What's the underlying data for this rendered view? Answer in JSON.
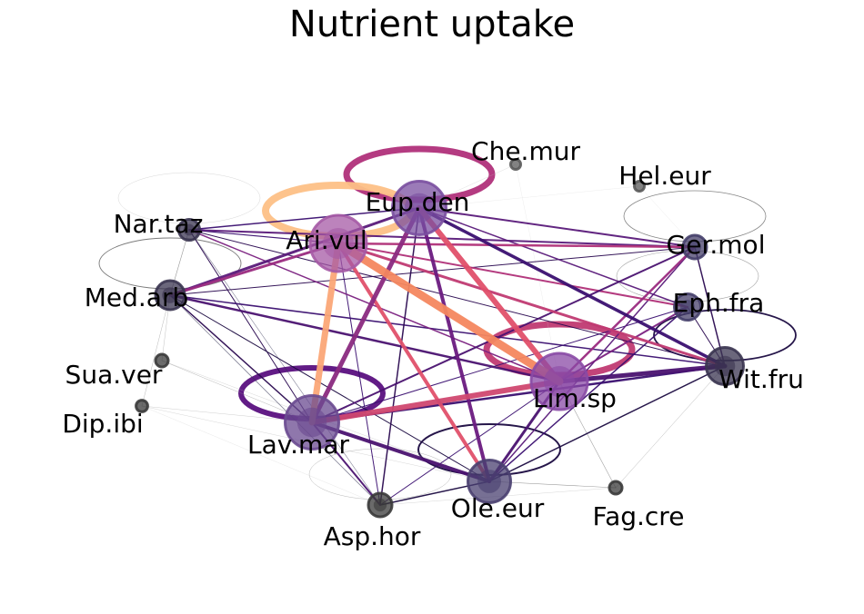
{
  "title": "Nutrient uptake",
  "colors": {
    "background": "#ffffff",
    "label": "#000000"
  },
  "nodes": [
    {
      "id": "Che.mur",
      "label": "Che.mur",
      "weight": 0.05,
      "color": "#5a5a5a"
    },
    {
      "id": "Hel.eur",
      "label": "Hel.eur",
      "weight": 0.05,
      "color": "#5a5a5a"
    },
    {
      "id": "Eup.den",
      "label": "Eup.den",
      "weight": 0.85,
      "color": "#7a4fa0"
    },
    {
      "id": "Ari.vul",
      "label": "Ari.vul",
      "weight": 0.9,
      "color": "#a55aa5"
    },
    {
      "id": "Nar.taz",
      "label": "Nar.taz",
      "weight": 0.25,
      "color": "#3a3450"
    },
    {
      "id": "Ger.mol",
      "label": "Ger.mol",
      "weight": 0.3,
      "color": "#453f6a"
    },
    {
      "id": "Med.arb",
      "label": "Med.arb",
      "weight": 0.4,
      "color": "#3a3450"
    },
    {
      "id": "Eph.fra",
      "label": "Eph.fra",
      "weight": 0.35,
      "color": "#453f6a"
    },
    {
      "id": "Sua.ver",
      "label": "Sua.ver",
      "weight": 0.1,
      "color": "#3a3a3a"
    },
    {
      "id": "Wit.fru",
      "label": "Wit.fru",
      "weight": 0.55,
      "color": "#3a3450"
    },
    {
      "id": "Lim.sp",
      "label": "Lim.sp",
      "weight": 0.9,
      "color": "#8a4aa5"
    },
    {
      "id": "Dip.ibi",
      "label": "Dip.ibi",
      "weight": 0.08,
      "color": "#3a3a3a"
    },
    {
      "id": "Lav.mar",
      "label": "Lav.mar",
      "weight": 0.85,
      "color": "#6a4a90"
    },
    {
      "id": "Ole.eur",
      "label": "Ole.eur",
      "weight": 0.65,
      "color": "#4a4070"
    },
    {
      "id": "Fag.cre",
      "label": "Fag.cre",
      "weight": 0.1,
      "color": "#3a3a3a"
    },
    {
      "id": "Asp.hor",
      "label": "Asp.hor",
      "weight": 0.3,
      "color": "#3a3a3a"
    }
  ],
  "edges": [
    {
      "s": "Ari.vul",
      "t": "Lim.sp",
      "w": 9,
      "color": "#f4875f"
    },
    {
      "s": "Ari.vul",
      "t": "Lav.mar",
      "w": 7,
      "color": "#fba777"
    },
    {
      "s": "Ari.vul",
      "t": "Ole.eur",
      "w": 4,
      "color": "#e0506a"
    },
    {
      "s": "Eup.den",
      "t": "Lim.sp",
      "w": 6,
      "color": "#e0506a"
    },
    {
      "s": "Eup.den",
      "t": "Lav.mar",
      "w": 5,
      "color": "#8a2a80"
    },
    {
      "s": "Eup.den",
      "t": "Ole.eur",
      "w": 4,
      "color": "#6a1a80"
    },
    {
      "s": "Lav.mar",
      "t": "Lim.sp",
      "w": 6,
      "color": "#d04870"
    },
    {
      "s": "Lav.mar",
      "t": "Ole.eur",
      "w": 4,
      "color": "#4a1270"
    },
    {
      "s": "Lim.sp",
      "t": "Wit.fru",
      "w": 5,
      "color": "#4a1270"
    },
    {
      "s": "Eup.den",
      "t": "Wit.fru",
      "w": 3.5,
      "color": "#3a0f70"
    },
    {
      "s": "Ari.vul",
      "t": "Wit.fru",
      "w": 3,
      "color": "#c03a72"
    },
    {
      "s": "Ari.vul",
      "t": "Ger.mol",
      "w": 2.5,
      "color": "#b03078"
    },
    {
      "s": "Eup.den",
      "t": "Ger.mol",
      "w": 2,
      "color": "#5a1a7a"
    },
    {
      "s": "Med.arb",
      "t": "Eup.den",
      "w": 3,
      "color": "#5a1a7a"
    },
    {
      "s": "Med.arb",
      "t": "Lim.sp",
      "w": 2.5,
      "color": "#4a1270"
    },
    {
      "s": "Med.arb",
      "t": "Ari.vul",
      "w": 3,
      "color": "#9a2a80"
    },
    {
      "s": "Med.arb",
      "t": "Wit.fru",
      "w": 1.5,
      "color": "#3a0f70"
    },
    {
      "s": "Nar.taz",
      "t": "Ger.mol",
      "w": 2,
      "color": "#5a1a7a"
    },
    {
      "s": "Nar.taz",
      "t": "Eup.den",
      "w": 1.5,
      "color": "#3a0f70"
    },
    {
      "s": "Nar.taz",
      "t": "Lim.sp",
      "w": 1.5,
      "color": "#7a2080"
    },
    {
      "s": "Lim.sp",
      "t": "Ole.eur",
      "w": 3,
      "color": "#4a1270"
    },
    {
      "s": "Lim.sp",
      "t": "Ger.mol",
      "w": 2.5,
      "color": "#9a2a80"
    },
    {
      "s": "Lim.sp",
      "t": "Eph.fra",
      "w": 2,
      "color": "#7a2080"
    },
    {
      "s": "Eph.fra",
      "t": "Ari.vul",
      "w": 2,
      "color": "#b03078"
    },
    {
      "s": "Eph.fra",
      "t": "Eup.den",
      "w": 1.5,
      "color": "#5a1a7a"
    },
    {
      "s": "Eph.fra",
      "t": "Ole.eur",
      "w": 1.5,
      "color": "#3a0f70"
    },
    {
      "s": "Ger.mol",
      "t": "Lav.mar",
      "w": 2,
      "color": "#4a1270"
    },
    {
      "s": "Ger.mol",
      "t": "Wit.fru",
      "w": 1.5,
      "color": "#2a0a50"
    },
    {
      "s": "Wit.fru",
      "t": "Lav.mar",
      "w": 2.5,
      "color": "#3a0f70"
    },
    {
      "s": "Wit.fru",
      "t": "Ole.eur",
      "w": 1.5,
      "color": "#1a0a40"
    },
    {
      "s": "Lav.mar",
      "t": "Asp.hor",
      "w": 2,
      "color": "#4a1270"
    },
    {
      "s": "Lav.mar",
      "t": "Med.arb",
      "w": 1.5,
      "color": "#2a0a50"
    },
    {
      "s": "Lav.mar",
      "t": "Nar.taz",
      "w": 1,
      "color": "#2a0a50"
    },
    {
      "s": "Eup.den",
      "t": "Asp.hor",
      "w": 1.5,
      "color": "#2a0a50"
    },
    {
      "s": "Ole.eur",
      "t": "Asp.hor",
      "w": 1.5,
      "color": "#1a0a40"
    },
    {
      "s": "Ole.eur",
      "t": "Ger.mol",
      "w": 1.5,
      "color": "#5a1a7a"
    },
    {
      "s": "Ole.eur",
      "t": "Med.arb",
      "w": 1,
      "color": "#1a0a40"
    },
    {
      "s": "Ole.eur",
      "t": "Fag.cre",
      "w": 0.6,
      "color": "#555555"
    },
    {
      "s": "Med.arb",
      "t": "Ger.mol",
      "w": 1,
      "color": "#2a0a50"
    },
    {
      "s": "Nar.taz",
      "t": "Wit.fru",
      "w": 1,
      "color": "#2a0a50"
    },
    {
      "s": "Nar.taz",
      "t": "Ari.vul",
      "w": 1.2,
      "color": "#3a0f70"
    },
    {
      "s": "Lim.sp",
      "t": "Asp.hor",
      "w": 1,
      "color": "#3a0f70"
    },
    {
      "s": "Ari.vul",
      "t": "Asp.hor",
      "w": 1,
      "color": "#3a0f70"
    },
    {
      "s": "Eph.fra",
      "t": "Lav.mar",
      "w": 1,
      "color": "#3a0f70"
    },
    {
      "s": "Eph.fra",
      "t": "Wit.fru",
      "w": 1,
      "color": "#2a0a50"
    },
    {
      "s": "Lim.sp",
      "t": "Fag.cre",
      "w": 0.6,
      "color": "#666666"
    },
    {
      "s": "Wit.fru",
      "t": "Fag.cre",
      "w": 0.5,
      "color": "#888888"
    },
    {
      "s": "Dip.ibi",
      "t": "Lav.mar",
      "w": 0.4,
      "color": "#999999"
    },
    {
      "s": "Dip.ibi",
      "t": "Med.arb",
      "w": 0.5,
      "color": "#888888"
    },
    {
      "s": "Dip.ibi",
      "t": "Ole.eur",
      "w": 0.4,
      "color": "#aaaaaa"
    },
    {
      "s": "Sua.ver",
      "t": "Lav.mar",
      "w": 0.5,
      "color": "#888888"
    },
    {
      "s": "Sua.ver",
      "t": "Med.arb",
      "w": 0.5,
      "color": "#999999"
    },
    {
      "s": "Sua.ver",
      "t": "Ole.eur",
      "w": 0.4,
      "color": "#aaaaaa"
    },
    {
      "s": "Che.mur",
      "t": "Eup.den",
      "w": 0.4,
      "color": "#bbbbbb"
    },
    {
      "s": "Che.mur",
      "t": "Lim.sp",
      "w": 0.3,
      "color": "#cccccc"
    },
    {
      "s": "Hel.eur",
      "t": "Ger.mol",
      "w": 0.3,
      "color": "#cccccc"
    },
    {
      "s": "Hel.eur",
      "t": "Eup.den",
      "w": 0.3,
      "color": "#cccccc"
    },
    {
      "s": "Fag.cre",
      "t": "Asp.hor",
      "w": 0.4,
      "color": "#aaaaaa"
    },
    {
      "s": "Dip.ibi",
      "t": "Asp.hor",
      "w": 0.3,
      "color": "#bbbbbb"
    },
    {
      "s": "Nar.taz",
      "t": "Med.arb",
      "w": 0.6,
      "color": "#555555"
    },
    {
      "s": "Nar.taz",
      "t": "Asp.hor",
      "w": 0.6,
      "color": "#333355"
    },
    {
      "s": "Med.arb",
      "t": "Asp.hor",
      "w": 0.8,
      "color": "#333355"
    }
  ],
  "self_loops": [
    {
      "node": "Eup.den",
      "w": 7,
      "color": "#b0307a"
    },
    {
      "node": "Ari.vul",
      "w": 8,
      "color": "#fdc086"
    },
    {
      "node": "Lim.sp",
      "w": 7,
      "color": "#c03a72"
    },
    {
      "node": "Lav.mar",
      "w": 6,
      "color": "#5a1080"
    },
    {
      "node": "Ole.eur",
      "w": 2,
      "color": "#1a0a40"
    },
    {
      "node": "Wit.fru",
      "w": 1.8,
      "color": "#1a0a40"
    },
    {
      "node": "Ger.mol",
      "w": 0.8,
      "color": "#333333"
    },
    {
      "node": "Med.arb",
      "w": 0.9,
      "color": "#222222"
    },
    {
      "node": "Nar.taz",
      "w": 0.4,
      "color": "#aaaaaa"
    },
    {
      "node": "Eph.fra",
      "w": 0.6,
      "color": "#666666"
    },
    {
      "node": "Asp.hor",
      "w": 0.5,
      "color": "#888888"
    }
  ]
}
